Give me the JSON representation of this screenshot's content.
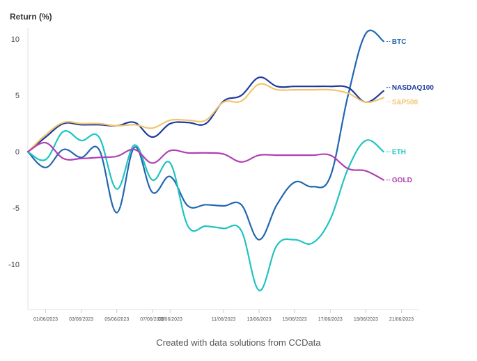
{
  "chart_data": {
    "type": "line",
    "title": "Return (%)",
    "footer": "Created with data solutions from CCData",
    "xlabel": "",
    "ylabel": "",
    "x_ticks": [
      "01/06/2023",
      "03/06/2023",
      "05/06/2023",
      "07/06/2023",
      "08/06/2023",
      "11/06/2023",
      "13/06/2023",
      "15/06/2023",
      "17/06/2023",
      "19/06/2023",
      "21/06/2023"
    ],
    "x_range": [
      "31/05/2023",
      "22/06/2023"
    ],
    "ylim": [
      -14,
      11
    ],
    "y_ticks": [
      10,
      5,
      0,
      -5,
      -10
    ],
    "grid": false,
    "legend": "end-of-line labels",
    "series": [
      {
        "name": "BTC",
        "color": "#2166b0",
        "points": [
          [
            "31/05/2023",
            0
          ],
          [
            "01/06/2023",
            -1.4
          ],
          [
            "02/06/2023",
            0.2
          ],
          [
            "03/06/2023",
            -0.5
          ],
          [
            "04/06/2023",
            0.2
          ],
          [
            "05/06/2023",
            -5.4
          ],
          [
            "06/06/2023",
            0.4
          ],
          [
            "07/06/2023",
            -3.6
          ],
          [
            "08/06/2023",
            -2.2
          ],
          [
            "09/06/2023",
            -4.8
          ],
          [
            "10/06/2023",
            -4.7
          ],
          [
            "11/06/2023",
            -4.8
          ],
          [
            "12/06/2023",
            -4.7
          ],
          [
            "13/06/2023",
            -7.8
          ],
          [
            "14/06/2023",
            -4.7
          ],
          [
            "15/06/2023",
            -2.7
          ],
          [
            "16/06/2023",
            -3.1
          ],
          [
            "17/06/2023",
            -2.2
          ],
          [
            "18/06/2023",
            5.0
          ],
          [
            "19/06/2023",
            10.5
          ],
          [
            "20/06/2023",
            9.8
          ]
        ]
      },
      {
        "name": "NASDAQ100",
        "color": "#1d3a9f",
        "points": [
          [
            "31/05/2023",
            0
          ],
          [
            "01/06/2023",
            1.3
          ],
          [
            "02/06/2023",
            2.5
          ],
          [
            "03/06/2023",
            2.4
          ],
          [
            "04/06/2023",
            2.4
          ],
          [
            "05/06/2023",
            2.3
          ],
          [
            "06/06/2023",
            2.6
          ],
          [
            "07/06/2023",
            1.3
          ],
          [
            "08/06/2023",
            2.5
          ],
          [
            "09/06/2023",
            2.6
          ],
          [
            "10/06/2023",
            2.5
          ],
          [
            "11/06/2023",
            4.5
          ],
          [
            "12/06/2023",
            5.0
          ],
          [
            "13/06/2023",
            6.6
          ],
          [
            "14/06/2023",
            5.8
          ],
          [
            "15/06/2023",
            5.8
          ],
          [
            "16/06/2023",
            5.8
          ],
          [
            "17/06/2023",
            5.8
          ],
          [
            "18/06/2023",
            5.7
          ],
          [
            "19/06/2023",
            4.4
          ],
          [
            "20/06/2023",
            5.4
          ]
        ]
      },
      {
        "name": "S&P500",
        "color": "#f2c46d",
        "points": [
          [
            "31/05/2023",
            0
          ],
          [
            "01/06/2023",
            1.5
          ],
          [
            "02/06/2023",
            2.6
          ],
          [
            "03/06/2023",
            2.5
          ],
          [
            "04/06/2023",
            2.5
          ],
          [
            "05/06/2023",
            2.3
          ],
          [
            "06/06/2023",
            2.4
          ],
          [
            "07/06/2023",
            2.1
          ],
          [
            "08/06/2023",
            2.8
          ],
          [
            "09/06/2023",
            2.8
          ],
          [
            "10/06/2023",
            2.8
          ],
          [
            "11/06/2023",
            4.4
          ],
          [
            "12/06/2023",
            4.5
          ],
          [
            "13/06/2023",
            6.0
          ],
          [
            "14/06/2023",
            5.5
          ],
          [
            "15/06/2023",
            5.5
          ],
          [
            "16/06/2023",
            5.5
          ],
          [
            "17/06/2023",
            5.5
          ],
          [
            "18/06/2023",
            5.2
          ],
          [
            "19/06/2023",
            4.4
          ],
          [
            "20/06/2023",
            4.8
          ]
        ]
      },
      {
        "name": "ETH",
        "color": "#1fc3c3",
        "points": [
          [
            "31/05/2023",
            0
          ],
          [
            "01/06/2023",
            -0.7
          ],
          [
            "02/06/2023",
            1.8
          ],
          [
            "03/06/2023",
            1.0
          ],
          [
            "04/06/2023",
            1.3
          ],
          [
            "05/06/2023",
            -3.3
          ],
          [
            "06/06/2023",
            0.6
          ],
          [
            "07/06/2023",
            -2.5
          ],
          [
            "08/06/2023",
            -1.0
          ],
          [
            "09/06/2023",
            -6.6
          ],
          [
            "10/06/2023",
            -6.6
          ],
          [
            "11/06/2023",
            -6.8
          ],
          [
            "12/06/2023",
            -7.0
          ],
          [
            "13/06/2023",
            -12.3
          ],
          [
            "14/06/2023",
            -8.3
          ],
          [
            "15/06/2023",
            -7.8
          ],
          [
            "16/06/2023",
            -8.1
          ],
          [
            "17/06/2023",
            -6.0
          ],
          [
            "18/06/2023",
            -1.5
          ],
          [
            "19/06/2023",
            1.0
          ],
          [
            "20/06/2023",
            0
          ]
        ]
      },
      {
        "name": "GOLD",
        "color": "#b03fb3",
        "points": [
          [
            "31/05/2023",
            0
          ],
          [
            "01/06/2023",
            0.8
          ],
          [
            "02/06/2023",
            -0.6
          ],
          [
            "03/06/2023",
            -0.6
          ],
          [
            "04/06/2023",
            -0.5
          ],
          [
            "05/06/2023",
            -0.4
          ],
          [
            "06/06/2023",
            0.2
          ],
          [
            "07/06/2023",
            -1.0
          ],
          [
            "08/06/2023",
            0.1
          ],
          [
            "09/06/2023",
            -0.1
          ],
          [
            "10/06/2023",
            -0.1
          ],
          [
            "11/06/2023",
            -0.2
          ],
          [
            "12/06/2023",
            -0.9
          ],
          [
            "13/06/2023",
            -0.3
          ],
          [
            "14/06/2023",
            -0.3
          ],
          [
            "15/06/2023",
            -0.3
          ],
          [
            "16/06/2023",
            -0.3
          ],
          [
            "17/06/2023",
            -0.3
          ],
          [
            "18/06/2023",
            -1.5
          ],
          [
            "19/06/2023",
            -1.7
          ],
          [
            "20/06/2023",
            -2.5
          ]
        ]
      }
    ]
  }
}
